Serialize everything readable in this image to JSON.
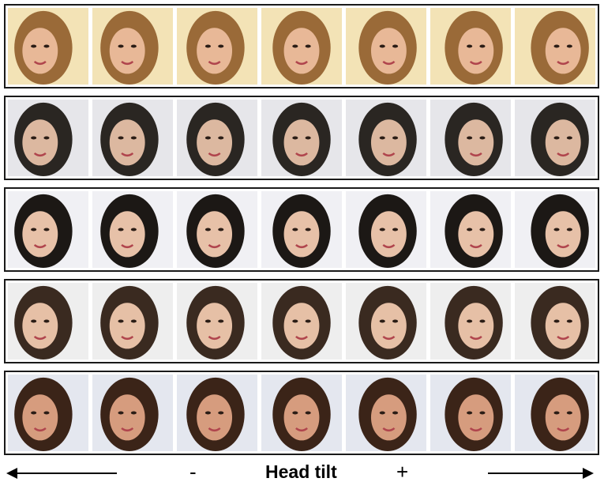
{
  "footer": {
    "minus": "-",
    "title": "Head tilt",
    "plus": "+"
  },
  "rows": [
    {
      "hair": "#9a6a38",
      "skin": "#e8b897",
      "bg": "#f3e3b6"
    },
    {
      "hair": "#2a2622",
      "skin": "#dcb8a0",
      "bg": "#e6e6ea"
    },
    {
      "hair": "#1c1815",
      "skin": "#e7c1a8",
      "bg": "#f0f0f4"
    },
    {
      "hair": "#3a2a20",
      "skin": "#e6c0a6",
      "bg": "#eeeeee"
    },
    {
      "hair": "#3b2418",
      "skin": "#d69c7e",
      "bg": "#e4e7ef"
    }
  ],
  "columns": 7
}
